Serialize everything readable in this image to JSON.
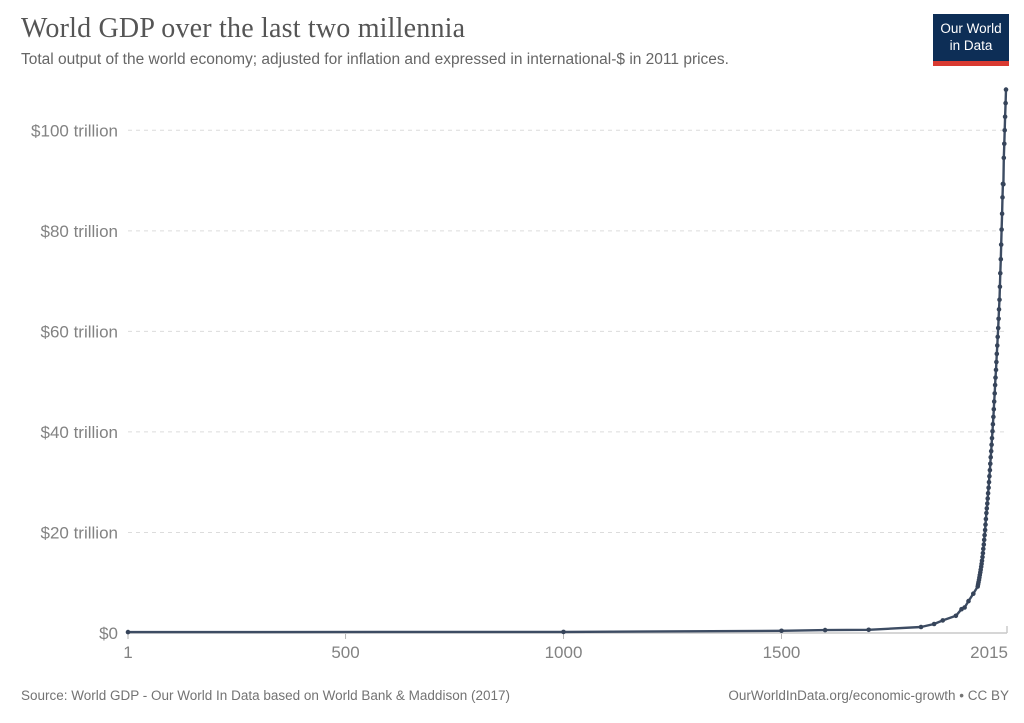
{
  "header": {
    "title": "World GDP over the last two millennia",
    "subtitle": "Total output of the world economy; adjusted for inflation and expressed in international-$ in 2011 prices."
  },
  "logo": {
    "line1": "Our World",
    "line2": "in Data",
    "bg_color": "#0d2e56",
    "bar_color": "#d93a31"
  },
  "chart_data": {
    "type": "line",
    "title": "World GDP over the last two millennia",
    "series_name": "World GDP",
    "unit": "trillion international-$ (2011 prices)",
    "xlim": [
      1,
      2015
    ],
    "ylim": [
      0,
      110
    ],
    "grid": "dashed horizontal",
    "legend_position": "none",
    "line_color": "#3d4c63",
    "point_color": "#36445a",
    "axis_color": "#c8c8c8",
    "grid_color": "#dcdcdc",
    "label_color": "#828282",
    "x_ticks": [
      {
        "v": 1,
        "label": "1"
      },
      {
        "v": 500,
        "label": "500"
      },
      {
        "v": 1000,
        "label": "1000"
      },
      {
        "v": 1500,
        "label": "1500"
      },
      {
        "v": 2015,
        "label": "2015"
      }
    ],
    "y_ticks": [
      {
        "v": 0,
        "label": "$0"
      },
      {
        "v": 20,
        "label": "$20 trillion"
      },
      {
        "v": 40,
        "label": "$40 trillion"
      },
      {
        "v": 60,
        "label": "$60 trillion"
      },
      {
        "v": 80,
        "label": "$80 trillion"
      },
      {
        "v": 100,
        "label": "$100 trillion"
      }
    ],
    "points": [
      [
        1,
        0.18
      ],
      [
        1000,
        0.21
      ],
      [
        1500,
        0.43
      ],
      [
        1600,
        0.58
      ],
      [
        1700,
        0.64
      ],
      [
        1820,
        1.2
      ],
      [
        1850,
        1.8
      ],
      [
        1870,
        2.51
      ],
      [
        1900,
        3.42
      ],
      [
        1913,
        4.73
      ],
      [
        1920,
        5.07
      ],
      [
        1929,
        6.34
      ],
      [
        1940,
        7.81
      ],
      [
        1950,
        9.25
      ],
      [
        1951,
        9.67
      ],
      [
        1952,
        10.1
      ],
      [
        1953,
        10.56
      ],
      [
        1954,
        11.03
      ],
      [
        1955,
        11.53
      ],
      [
        1956,
        12.05
      ],
      [
        1957,
        12.59
      ],
      [
        1958,
        13.16
      ],
      [
        1959,
        13.75
      ],
      [
        1960,
        14.37
      ],
      [
        1961,
        15.12
      ],
      [
        1962,
        15.9
      ],
      [
        1963,
        16.73
      ],
      [
        1964,
        17.6
      ],
      [
        1965,
        18.52
      ],
      [
        1966,
        19.48
      ],
      [
        1967,
        20.49
      ],
      [
        1968,
        21.56
      ],
      [
        1969,
        22.68
      ],
      [
        1970,
        23.86
      ],
      [
        1971,
        24.79
      ],
      [
        1972,
        25.76
      ],
      [
        1973,
        26.76
      ],
      [
        1974,
        27.8
      ],
      [
        1975,
        28.89
      ],
      [
        1976,
        30.01
      ],
      [
        1977,
        31.18
      ],
      [
        1978,
        32.4
      ],
      [
        1979,
        33.66
      ],
      [
        1980,
        34.97
      ],
      [
        1981,
        36.19
      ],
      [
        1982,
        37.46
      ],
      [
        1983,
        38.77
      ],
      [
        1984,
        40.13
      ],
      [
        1985,
        41.53
      ],
      [
        1986,
        42.99
      ],
      [
        1987,
        44.49
      ],
      [
        1988,
        46.05
      ],
      [
        1989,
        47.66
      ],
      [
        1990,
        49.33
      ],
      [
        1991,
        50.81
      ],
      [
        1992,
        52.33
      ],
      [
        1993,
        53.9
      ],
      [
        1994,
        55.52
      ],
      [
        1995,
        57.19
      ],
      [
        1996,
        58.9
      ],
      [
        1997,
        60.67
      ],
      [
        1998,
        62.49
      ],
      [
        1999,
        64.36
      ],
      [
        2000,
        66.29
      ],
      [
        2001,
        68.88
      ],
      [
        2002,
        71.57
      ],
      [
        2003,
        74.36
      ],
      [
        2004,
        77.26
      ],
      [
        2005,
        80.27
      ],
      [
        2006,
        83.4
      ],
      [
        2007,
        86.65
      ],
      [
        2008,
        89.34
      ],
      [
        2009,
        89.25
      ],
      [
        2010,
        94.5
      ],
      [
        2011,
        97.3
      ],
      [
        2012,
        100.0
      ],
      [
        2013,
        102.7
      ],
      [
        2014,
        105.4
      ],
      [
        2015,
        108.1
      ]
    ]
  },
  "footer": {
    "source": "Source: World GDP - Our World In Data based on World Bank & Maddison (2017)",
    "link": "OurWorldInData.org/economic-growth",
    "separator": " • ",
    "license": "CC BY"
  }
}
